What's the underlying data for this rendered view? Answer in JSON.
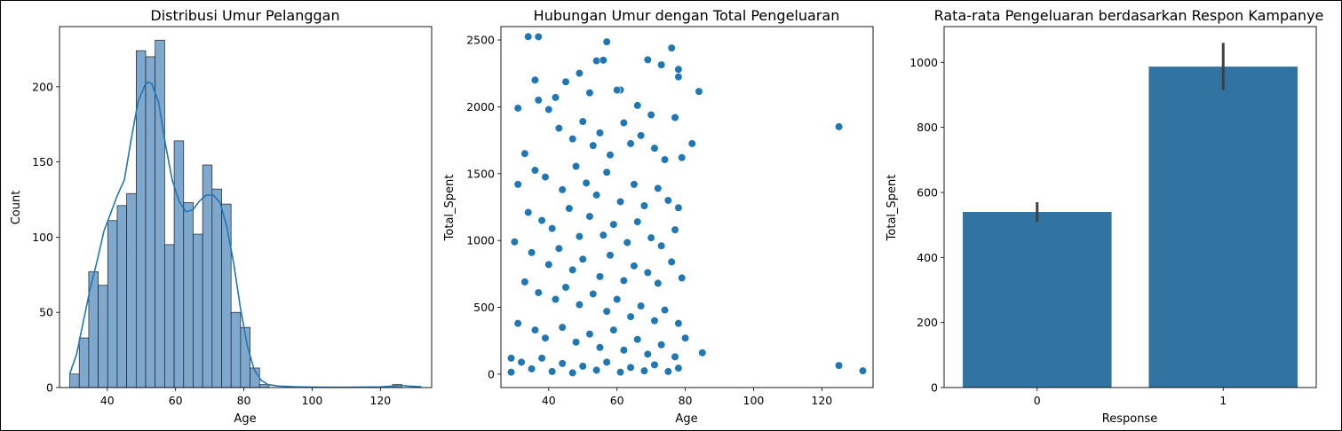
{
  "chart_data": [
    {
      "type": "bar",
      "subtype": "histogram-with-kde",
      "title": "Distribusi Umur Pelanggan",
      "xlabel": "Age",
      "ylabel": "Count",
      "xlim": [
        26,
        135
      ],
      "ylim": [
        0,
        240
      ],
      "xticks": [
        40,
        60,
        80,
        100,
        120
      ],
      "yticks": [
        0,
        50,
        100,
        150,
        200
      ],
      "bin_width": 2.78,
      "bins": [
        {
          "x0": 29.0,
          "count": 9
        },
        {
          "x0": 31.78,
          "count": 33
        },
        {
          "x0": 34.56,
          "count": 77
        },
        {
          "x0": 37.34,
          "count": 68
        },
        {
          "x0": 40.12,
          "count": 111
        },
        {
          "x0": 42.9,
          "count": 121
        },
        {
          "x0": 45.68,
          "count": 129
        },
        {
          "x0": 48.46,
          "count": 224
        },
        {
          "x0": 51.24,
          "count": 220
        },
        {
          "x0": 54.02,
          "count": 231
        },
        {
          "x0": 56.8,
          "count": 95
        },
        {
          "x0": 59.58,
          "count": 164
        },
        {
          "x0": 62.36,
          "count": 123
        },
        {
          "x0": 65.14,
          "count": 102
        },
        {
          "x0": 67.92,
          "count": 148
        },
        {
          "x0": 70.7,
          "count": 132
        },
        {
          "x0": 73.48,
          "count": 122
        },
        {
          "x0": 76.26,
          "count": 50
        },
        {
          "x0": 79.04,
          "count": 40
        },
        {
          "x0": 81.82,
          "count": 13
        },
        {
          "x0": 84.6,
          "count": 2
        },
        {
          "x0": 123.52,
          "count": 2
        }
      ],
      "kde": {
        "x": [
          29,
          31,
          33,
          35,
          37,
          39,
          41,
          43,
          45,
          47,
          49,
          51,
          52,
          53,
          55,
          57,
          59,
          61,
          63,
          65,
          67,
          69,
          71,
          73,
          75,
          77,
          79,
          81,
          83,
          85,
          87,
          90,
          95,
          100,
          110,
          120,
          124,
          126,
          128,
          132
        ],
        "y": [
          9,
          22,
          44,
          66,
          84,
          104,
          116,
          128,
          138,
          165,
          190,
          201,
          203,
          202,
          190,
          162,
          138,
          124,
          117,
          118,
          124,
          128,
          128,
          123,
          107,
          83,
          53,
          28,
          12,
          5,
          2,
          1,
          0.5,
          0.3,
          0.2,
          0.4,
          1,
          1.5,
          1,
          0.5
        ]
      },
      "colors": {
        "bar": "#7ea8cd",
        "bar_edge": "#1f1f1f",
        "kde": "#1f77b4"
      }
    },
    {
      "type": "scatter",
      "title": "Hubungan Umur dengan Total Pengeluaran",
      "xlabel": "Age",
      "ylabel": "Total_Spent",
      "xlim": [
        26,
        135
      ],
      "ylim": [
        -100,
        2600
      ],
      "xticks": [
        40,
        60,
        80,
        100,
        120
      ],
      "yticks": [
        0,
        500,
        1000,
        1500,
        2000,
        2500
      ],
      "points": [
        [
          34,
          2525
        ],
        [
          37,
          2524
        ],
        [
          57,
          2486
        ],
        [
          54,
          2344
        ],
        [
          56,
          2349
        ],
        [
          76,
          2440
        ],
        [
          69,
          2352
        ],
        [
          73,
          2314
        ],
        [
          78,
          2280
        ],
        [
          49,
          2251
        ],
        [
          36,
          2200
        ],
        [
          45,
          2187
        ],
        [
          61,
          2126
        ],
        [
          60,
          2125
        ],
        [
          78,
          2224
        ],
        [
          84,
          2115
        ],
        [
          31,
          1990
        ],
        [
          37,
          2050
        ],
        [
          42,
          2070
        ],
        [
          52,
          2105
        ],
        [
          66,
          2010
        ],
        [
          70,
          1940
        ],
        [
          77,
          1920
        ],
        [
          82,
          1725
        ],
        [
          125,
          1851
        ],
        [
          40,
          1980
        ],
        [
          43,
          1840
        ],
        [
          47,
          1760
        ],
        [
          50,
          1890
        ],
        [
          53,
          1710
        ],
        [
          55,
          1805
        ],
        [
          58,
          1640
        ],
        [
          62,
          1880
        ],
        [
          64,
          1725
        ],
        [
          67,
          1785
        ],
        [
          71,
          1690
        ],
        [
          74,
          1605
        ],
        [
          79,
          1620
        ],
        [
          33,
          1650
        ],
        [
          36,
          1525
        ],
        [
          39,
          1475
        ],
        [
          44,
          1380
        ],
        [
          48,
          1555
        ],
        [
          51,
          1430
        ],
        [
          54,
          1340
        ],
        [
          57,
          1510
        ],
        [
          61,
          1290
        ],
        [
          65,
          1420
        ],
        [
          68,
          1260
        ],
        [
          72,
          1390
        ],
        [
          75,
          1300
        ],
        [
          78,
          1245
        ],
        [
          31,
          1420
        ],
        [
          34,
          1210
        ],
        [
          38,
          1150
        ],
        [
          41,
          1090
        ],
        [
          46,
          1240
        ],
        [
          49,
          1030
        ],
        [
          52,
          1180
        ],
        [
          56,
          1040
        ],
        [
          59,
          1120
        ],
        [
          63,
          985
        ],
        [
          66,
          1140
        ],
        [
          70,
          1020
        ],
        [
          73,
          960
        ],
        [
          77,
          1080
        ],
        [
          30,
          990
        ],
        [
          35,
          910
        ],
        [
          40,
          820
        ],
        [
          43,
          940
        ],
        [
          47,
          780
        ],
        [
          50,
          860
        ],
        [
          55,
          730
        ],
        [
          58,
          890
        ],
        [
          62,
          700
        ],
        [
          65,
          810
        ],
        [
          69,
          760
        ],
        [
          72,
          680
        ],
        [
          76,
          840
        ],
        [
          79,
          720
        ],
        [
          33,
          690
        ],
        [
          37,
          610
        ],
        [
          42,
          560
        ],
        [
          45,
          650
        ],
        [
          49,
          520
        ],
        [
          53,
          600
        ],
        [
          57,
          470
        ],
        [
          60,
          560
        ],
        [
          64,
          430
        ],
        [
          67,
          510
        ],
        [
          71,
          400
        ],
        [
          74,
          480
        ],
        [
          78,
          380
        ],
        [
          31,
          380
        ],
        [
          36,
          330
        ],
        [
          39,
          270
        ],
        [
          44,
          350
        ],
        [
          48,
          240
        ],
        [
          52,
          300
        ],
        [
          55,
          200
        ],
        [
          59,
          330
        ],
        [
          62,
          180
        ],
        [
          66,
          260
        ],
        [
          69,
          150
        ],
        [
          73,
          220
        ],
        [
          77,
          130
        ],
        [
          80,
          270
        ],
        [
          85,
          160
        ],
        [
          29,
          120
        ],
        [
          32,
          90
        ],
        [
          35,
          40
        ],
        [
          38,
          120
        ],
        [
          41,
          20
        ],
        [
          44,
          80
        ],
        [
          47,
          10
        ],
        [
          50,
          60
        ],
        [
          54,
          30
        ],
        [
          57,
          90
        ],
        [
          61,
          15
        ],
        [
          64,
          50
        ],
        [
          68,
          25
        ],
        [
          71,
          70
        ],
        [
          75,
          20
        ],
        [
          78,
          45
        ],
        [
          29,
          15
        ],
        [
          125,
          65
        ],
        [
          132,
          25
        ]
      ],
      "colors": {
        "point": "#1f77b4",
        "edge": "#ffffff"
      }
    },
    {
      "type": "bar",
      "title": "Rata-rata Pengeluaran berdasarkan Respon Kampanye",
      "xlabel": "Response",
      "ylabel": "Total_Spent",
      "categories": [
        "0",
        "1"
      ],
      "values": [
        540,
        987
      ],
      "error_bars": [
        [
          510,
          570
        ],
        [
          915,
          1060
        ]
      ],
      "ylim": [
        0,
        1110
      ],
      "yticks": [
        0,
        200,
        400,
        600,
        800,
        1000
      ],
      "colors": {
        "bar": "#3274a1",
        "error": "#3f3f3f"
      }
    }
  ]
}
